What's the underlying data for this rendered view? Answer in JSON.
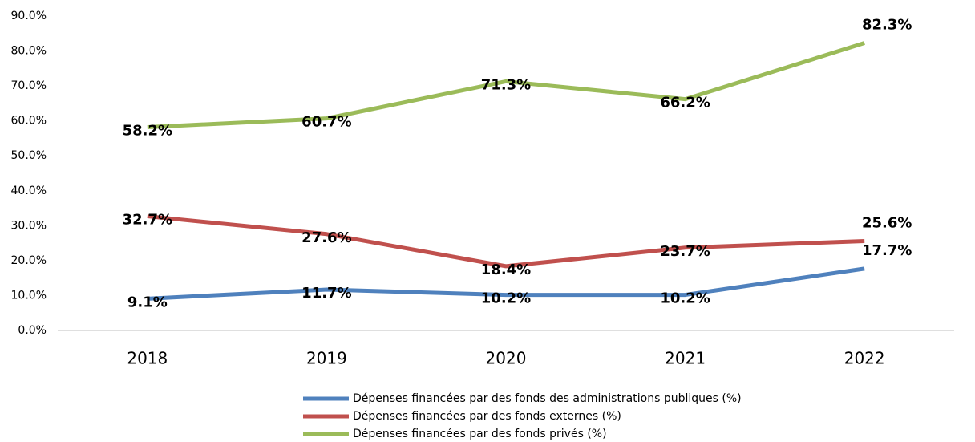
{
  "chart_data": {
    "type": "line",
    "categories": [
      "2018",
      "2019",
      "2020",
      "2021",
      "2022"
    ],
    "series": [
      {
        "name": "Dépenses financées par des fonds des administrations publiques (%)",
        "color": "#4f81bd",
        "values": [
          9.1,
          11.7,
          10.2,
          10.2,
          17.7
        ],
        "value_labels": [
          "9.1%",
          "11.7%",
          "10.2%",
          "10.2%",
          "17.7%"
        ]
      },
      {
        "name": "Dépenses financées par des fonds externes (%)",
        "color": "#c0504d",
        "values": [
          32.7,
          27.6,
          18.4,
          23.7,
          25.6
        ],
        "value_labels": [
          "32.7%",
          "27.6%",
          "18.4%",
          "23.7%",
          "25.6%"
        ]
      },
      {
        "name": "Dépenses financées par des fonds privés (%)",
        "color": "#9bbb59",
        "values": [
          58.2,
          60.7,
          71.3,
          66.2,
          82.3
        ],
        "value_labels": [
          "58.2%",
          "60.7%",
          "71.3%",
          "66.2%",
          "82.3%"
        ]
      }
    ],
    "ylim": [
      0,
      90
    ],
    "yticks": [
      {
        "value": 0,
        "label": "0.0%"
      },
      {
        "value": 10,
        "label": "10.0%"
      },
      {
        "value": 20,
        "label": "20.0%"
      },
      {
        "value": 30,
        "label": "30.0%"
      },
      {
        "value": 40,
        "label": "40.0%"
      },
      {
        "value": 50,
        "label": "50.0%"
      },
      {
        "value": 60,
        "label": "60.0%"
      },
      {
        "value": 70,
        "label": "70.0%"
      },
      {
        "value": 80,
        "label": "80.0%"
      },
      {
        "value": 90,
        "label": "90.0%"
      }
    ],
    "grid": false,
    "legend": "bottom"
  }
}
